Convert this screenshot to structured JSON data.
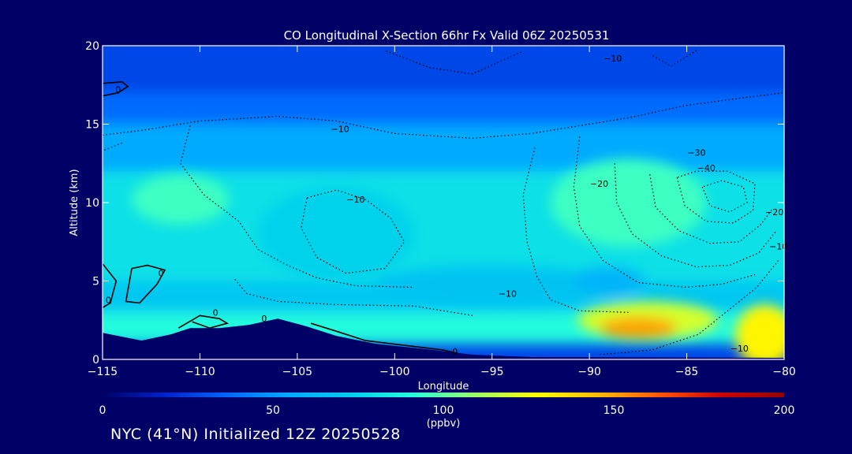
{
  "chart_data": {
    "type": "heatmap",
    "title": "CO Longitudinal X-Section 66hr  Fx Valid 06Z 20250531",
    "xlabel": "Longitude",
    "ylabel": "Altitude (km)",
    "xlim": [
      -115,
      -80
    ],
    "ylim": [
      0,
      20
    ],
    "xticks": [
      -115,
      -110,
      -105,
      -100,
      -95,
      -90,
      -85,
      -80
    ],
    "yticks": [
      0,
      5,
      10,
      15,
      20
    ],
    "xtick_labels": [
      "−115",
      "−110",
      "−105",
      "−100",
      "−95",
      "−90",
      "−85",
      "−80"
    ],
    "colorbar": {
      "min": 0,
      "max": 200,
      "ticks": [
        0,
        50,
        100,
        150,
        200
      ],
      "units": "(ppbv)",
      "colors": [
        "#000066",
        "#0022cc",
        "#0066ff",
        "#00aaff",
        "#00ccee",
        "#22ffdd",
        "#99ff66",
        "#ffff00",
        "#ffbb00",
        "#ff5500",
        "#cc0000",
        "#990000"
      ]
    },
    "bands": [
      {
        "alt_min": 17,
        "alt_max": 20,
        "value": 28
      },
      {
        "alt_min": 15,
        "alt_max": 17,
        "value": 38
      },
      {
        "alt_min": 12,
        "alt_max": 15,
        "value": 55
      },
      {
        "alt_min": 5,
        "alt_max": 12,
        "value": 80
      },
      {
        "alt_min": 3,
        "alt_max": 5,
        "value": 70
      },
      {
        "alt_min": 1,
        "alt_max": 3,
        "value": 90
      }
    ],
    "cells": [
      {
        "lon": -111,
        "alt": 10.2,
        "rx": 2.5,
        "ry": 1.6,
        "value": 95,
        "label": "cyan patch west"
      },
      {
        "lon": -103,
        "alt": 8.0,
        "rx": 4,
        "ry": 3,
        "value": 75,
        "label": "mid-level trough"
      },
      {
        "lon": -95,
        "alt": 4.8,
        "rx": 6,
        "ry": 1.2,
        "value": 68,
        "label": "low band"
      },
      {
        "lon": -88,
        "alt": 10.0,
        "rx": 4,
        "ry": 2.8,
        "value": 95,
        "label": "upper cyan dome"
      },
      {
        "lon": -89,
        "alt": 5.0,
        "rx": 1.8,
        "ry": 0.9,
        "value": 60,
        "label": "deep blue cell"
      },
      {
        "lon": -87,
        "alt": 2.5,
        "rx": 3.6,
        "ry": 1.2,
        "value": 120,
        "label": "orange plume outer"
      },
      {
        "lon": -87.5,
        "alt": 2.0,
        "rx": 2.0,
        "ry": 0.7,
        "value": 150,
        "label": "red core"
      },
      {
        "lon": -81,
        "alt": 1.5,
        "rx": 1.5,
        "ry": 2,
        "value": 130,
        "label": "east boundary plume"
      }
    ],
    "terrain": [
      [
        -115,
        1.7
      ],
      [
        -113,
        1.2
      ],
      [
        -111.5,
        1.6
      ],
      [
        -110.5,
        2.0
      ],
      [
        -109,
        2.0
      ],
      [
        -107.5,
        2.2
      ],
      [
        -106,
        2.6
      ],
      [
        -104.5,
        2.1
      ],
      [
        -103,
        1.5
      ],
      [
        -101,
        1.0
      ],
      [
        -98,
        0.6
      ],
      [
        -96,
        0.3
      ],
      [
        -93,
        0.15
      ],
      [
        -80,
        0.1
      ]
    ],
    "contour_labels": [
      {
        "lon": -114.2,
        "alt": 17.0,
        "text": "0"
      },
      {
        "lon": -102.8,
        "alt": 14.5,
        "text": "−10"
      },
      {
        "lon": -102.0,
        "alt": 10.0,
        "text": "−10"
      },
      {
        "lon": -88.8,
        "alt": 19.0,
        "text": "−10"
      },
      {
        "lon": -89.5,
        "alt": 11.0,
        "text": "−20"
      },
      {
        "lon": -84.5,
        "alt": 13.0,
        "text": "−30"
      },
      {
        "lon": -84.0,
        "alt": 12.0,
        "text": "−40"
      },
      {
        "lon": -80.5,
        "alt": 9.2,
        "text": "−20"
      },
      {
        "lon": -80.3,
        "alt": 7.0,
        "text": "−10"
      },
      {
        "lon": -82.3,
        "alt": 0.5,
        "text": "−10"
      },
      {
        "lon": -94.2,
        "alt": 4.0,
        "text": "−10"
      },
      {
        "lon": -112.0,
        "alt": 5.3,
        "text": "0"
      },
      {
        "lon": -114.7,
        "alt": 3.6,
        "text": "0"
      },
      {
        "lon": -109.2,
        "alt": 2.8,
        "text": "0"
      },
      {
        "lon": -106.7,
        "alt": 2.4,
        "text": "0"
      },
      {
        "lon": -96.9,
        "alt": 0.3,
        "text": "0"
      }
    ]
  },
  "footer": {
    "text": "NYC (41°N) Initialized 12Z 20250528"
  }
}
